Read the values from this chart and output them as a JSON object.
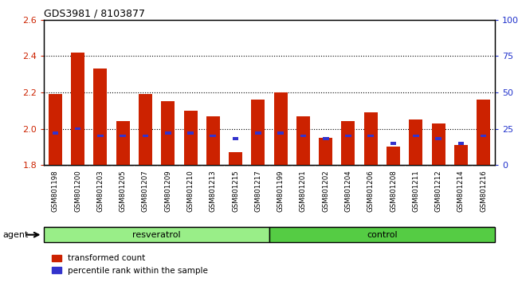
{
  "title": "GDS3981 / 8103877",
  "samples": [
    "GSM801198",
    "GSM801200",
    "GSM801203",
    "GSM801205",
    "GSM801207",
    "GSM801209",
    "GSM801210",
    "GSM801213",
    "GSM801215",
    "GSM801217",
    "GSM801199",
    "GSM801201",
    "GSM801202",
    "GSM801204",
    "GSM801206",
    "GSM801208",
    "GSM801211",
    "GSM801212",
    "GSM801214",
    "GSM801216"
  ],
  "transformed_count": [
    2.19,
    2.42,
    2.33,
    2.04,
    2.19,
    2.15,
    2.1,
    2.07,
    1.87,
    2.16,
    2.2,
    2.07,
    1.95,
    2.04,
    2.09,
    1.9,
    2.05,
    2.03,
    1.91,
    2.16
  ],
  "percentile_rank": [
    22,
    25,
    20,
    20,
    20,
    22,
    22,
    20,
    18,
    22,
    22,
    20,
    18,
    20,
    20,
    15,
    20,
    18,
    15,
    20
  ],
  "resveratrol_count": 10,
  "ylim_left": [
    1.8,
    2.6
  ],
  "ylim_right": [
    0,
    100
  ],
  "yticks_left": [
    1.8,
    2.0,
    2.2,
    2.4,
    2.6
  ],
  "yticks_right": [
    0,
    25,
    50,
    75,
    100
  ],
  "bar_color": "#cc2200",
  "percentile_color": "#3333cc",
  "resveratrol_bg": "#99ee88",
  "control_bg": "#55cc44",
  "agent_label": "agent",
  "resveratrol_label": "resveratrol",
  "control_label": "control",
  "legend_items": [
    "transformed count",
    "percentile rank within the sample"
  ],
  "bar_width": 0.6,
  "tick_label_color_left": "#cc2200",
  "tick_label_color_right": "#2233cc",
  "xtick_bg": "#cccccc",
  "plot_bg": "#ffffff"
}
